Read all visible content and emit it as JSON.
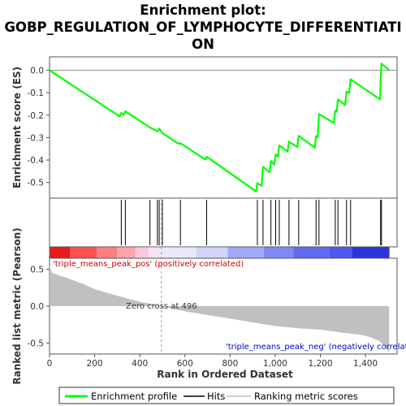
{
  "chart_data": {
    "type": "line",
    "title_line1": "Enrichment plot:",
    "title_line2": "GOBP_REGULATION_OF_LYMPHOCYTE_DIFFERENTIATI",
    "title_line3": "ON",
    "es_ylabel": "Enrichment score (ES)",
    "metric_ylabel": "Ranked list metric (Pearson)",
    "xlabel": "Rank in Ordered Dataset",
    "xlim": [
      0,
      1540
    ],
    "es_ylim": [
      -0.57,
      0.06
    ],
    "metric_ylim": [
      -0.65,
      0.65
    ],
    "x_ticks": [
      0,
      200,
      400,
      600,
      800,
      1000,
      1200,
      1400
    ],
    "x_tick_labels": [
      "0",
      "200",
      "400",
      "600",
      "800",
      "1,000",
      "1,200",
      "1,400"
    ],
    "es_ticks": [
      0.0,
      -0.1,
      -0.2,
      -0.3,
      -0.4,
      -0.5
    ],
    "es_tick_labels": [
      "0.0",
      "-0.1",
      "-0.2",
      "-0.3",
      "-0.4",
      "-0.5"
    ],
    "metric_ticks": [
      0.5,
      0.0,
      -0.5
    ],
    "metric_tick_labels": [
      "0.5",
      "0.0",
      "-0.5"
    ],
    "enrichment_profile": {
      "name": "Enrichment profile",
      "color": "#00ff00",
      "points": [
        [
          0,
          0.0
        ],
        [
          310,
          -0.205
        ],
        [
          318,
          -0.19
        ],
        [
          328,
          -0.198
        ],
        [
          336,
          -0.183
        ],
        [
          445,
          -0.255
        ],
        [
          478,
          -0.272
        ],
        [
          486,
          -0.26
        ],
        [
          500,
          -0.28
        ],
        [
          572,
          -0.328
        ],
        [
          580,
          -0.325
        ],
        [
          690,
          -0.398
        ],
        [
          696,
          -0.385
        ],
        [
          915,
          -0.54
        ],
        [
          921,
          -0.503
        ],
        [
          940,
          -0.515
        ],
        [
          946,
          -0.43
        ],
        [
          975,
          -0.455
        ],
        [
          981,
          -0.405
        ],
        [
          996,
          -0.42
        ],
        [
          1002,
          -0.375
        ],
        [
          1012,
          -0.385
        ],
        [
          1018,
          -0.335
        ],
        [
          1055,
          -0.362
        ],
        [
          1061,
          -0.318
        ],
        [
          1098,
          -0.342
        ],
        [
          1104,
          -0.292
        ],
        [
          1175,
          -0.345
        ],
        [
          1181,
          -0.293
        ],
        [
          1188,
          -0.3
        ],
        [
          1194,
          -0.195
        ],
        [
          1260,
          -0.235
        ],
        [
          1266,
          -0.18
        ],
        [
          1272,
          -0.185
        ],
        [
          1278,
          -0.13
        ],
        [
          1310,
          -0.155
        ],
        [
          1316,
          -0.095
        ],
        [
          1328,
          -0.102
        ],
        [
          1334,
          -0.04
        ],
        [
          1465,
          -0.13
        ],
        [
          1467,
          -0.05
        ],
        [
          1471,
          0.03
        ],
        [
          1505,
          0.0
        ]
      ]
    },
    "hits": {
      "name": "Hits",
      "positions": [
        318,
        336,
        445,
        478,
        486,
        500,
        580,
        696,
        921,
        946,
        981,
        1002,
        1018,
        1061,
        1104,
        1181,
        1194,
        1266,
        1278,
        1316,
        1334,
        1467,
        1471
      ]
    },
    "ranking_metric": {
      "name": "Ranking metric scores",
      "color": "#c0c0c0",
      "points": [
        [
          0,
          0.55
        ],
        [
          10,
          0.46
        ],
        [
          30,
          0.43
        ],
        [
          80,
          0.38
        ],
        [
          150,
          0.3
        ],
        [
          200,
          0.23
        ],
        [
          300,
          0.14
        ],
        [
          400,
          0.06
        ],
        [
          496,
          0.0
        ],
        [
          600,
          -0.07
        ],
        [
          700,
          -0.12
        ],
        [
          800,
          -0.17
        ],
        [
          900,
          -0.22
        ],
        [
          1000,
          -0.27
        ],
        [
          1100,
          -0.3
        ],
        [
          1200,
          -0.32
        ],
        [
          1300,
          -0.36
        ],
        [
          1380,
          -0.39
        ],
        [
          1420,
          -0.42
        ],
        [
          1460,
          -0.47
        ],
        [
          1485,
          -0.54
        ],
        [
          1500,
          -0.61
        ],
        [
          1505,
          -0.63
        ]
      ]
    },
    "zero_cross_label": "Zero cross at 496",
    "zero_cross_x": 496,
    "pos_label": "'triple_means_peak_pos' (positively correlated)",
    "neg_label": "'triple_means_peak_neg' (negatively correlat",
    "pos_label_color": "#cc0000",
    "neg_label_color": "#0000cc",
    "heatmap_bar": {
      "max_rank": 1505,
      "segments": [
        [
          0,
          90,
          "#ea1a1a"
        ],
        [
          90,
          210,
          "#fd5151"
        ],
        [
          210,
          300,
          "#ff7f7f"
        ],
        [
          300,
          380,
          "#ffa5a5"
        ],
        [
          380,
          440,
          "#ffc7de"
        ],
        [
          440,
          496,
          "#f5e4f2"
        ],
        [
          496,
          650,
          "#e9e9fc"
        ],
        [
          650,
          790,
          "#d2d2fc"
        ],
        [
          790,
          950,
          "#a2a8f8"
        ],
        [
          950,
          1080,
          "#7f88f4"
        ],
        [
          1080,
          1240,
          "#5f6aee"
        ],
        [
          1240,
          1340,
          "#4d59ea"
        ],
        [
          1340,
          1505,
          "#2a35d8"
        ]
      ]
    },
    "legend": {
      "items": [
        "Enrichment profile",
        "Hits",
        "Ranking metric scores"
      ],
      "placement": "bottom"
    }
  }
}
